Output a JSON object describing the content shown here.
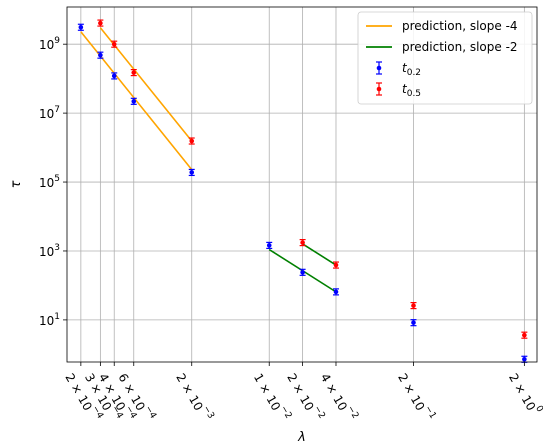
{
  "chart_data": {
    "type": "scatter",
    "xscale": "log",
    "yscale": "log",
    "xlabel": "λ",
    "ylabel": "τ",
    "grid": true,
    "legend_position": "top-right",
    "xlim": [
      0.00015,
      2.6
    ],
    "ylim": [
      0.6,
      12000000000
    ],
    "x_ticks": [
      {
        "value": 0.0002,
        "mantissa": "2",
        "exp": "−4"
      },
      {
        "value": 0.0003,
        "mantissa": "3",
        "exp": "−4"
      },
      {
        "value": 0.0004,
        "mantissa": "4",
        "exp": "−4"
      },
      {
        "value": 0.0006,
        "mantissa": "6",
        "exp": "−4"
      },
      {
        "value": 0.002,
        "mantissa": "2",
        "exp": "−3"
      },
      {
        "value": 0.01,
        "mantissa": "1",
        "exp": "−2"
      },
      {
        "value": 0.02,
        "mantissa": "2",
        "exp": "−2"
      },
      {
        "value": 0.04,
        "mantissa": "4",
        "exp": "−2"
      },
      {
        "value": 0.2,
        "mantissa": "2",
        "exp": "−1"
      },
      {
        "value": 2,
        "mantissa": "2",
        "exp": "0"
      }
    ],
    "y_ticks": [
      {
        "value": 10,
        "exp": "1"
      },
      {
        "value": 1000,
        "exp": "3"
      },
      {
        "value": 100000,
        "exp": "5"
      },
      {
        "value": 10000000,
        "exp": "7"
      },
      {
        "value": 1000000000,
        "exp": "9"
      }
    ],
    "series": [
      {
        "name": "t0.2",
        "name_base": "t",
        "name_sub": "0.2",
        "color": "#0000ff",
        "kind": "errorbar",
        "points": [
          {
            "x": 0.0002,
            "y": 3100000000
          },
          {
            "x": 0.0003,
            "y": 480000000
          },
          {
            "x": 0.0004,
            "y": 120000000
          },
          {
            "x": 0.0006,
            "y": 22000000
          },
          {
            "x": 0.002,
            "y": 190000
          },
          {
            "x": 0.01,
            "y": 1450
          },
          {
            "x": 0.02,
            "y": 240
          },
          {
            "x": 0.04,
            "y": 65
          },
          {
            "x": 0.2,
            "y": 8.3
          },
          {
            "x": 2,
            "y": 0.72
          }
        ]
      },
      {
        "name": "t0.5",
        "name_base": "t",
        "name_sub": "0.5",
        "color": "#ff0000",
        "kind": "errorbar",
        "points": [
          {
            "x": 0.0003,
            "y": 4100000000
          },
          {
            "x": 0.0004,
            "y": 1000000000
          },
          {
            "x": 0.0006,
            "y": 150000000
          },
          {
            "x": 0.002,
            "y": 1550000
          },
          {
            "x": 0.02,
            "y": 1750
          },
          {
            "x": 0.04,
            "y": 390
          },
          {
            "x": 0.2,
            "y": 26
          },
          {
            "x": 2,
            "y": 3.6
          }
        ]
      },
      {
        "name": "prediction, slope -4",
        "color": "#ffa500",
        "kind": "line",
        "segments": [
          [
            {
              "x": 0.0002,
              "y": 2300000000
            },
            {
              "x": 0.002,
              "y": 230000
            }
          ],
          [
            {
              "x": 0.0003,
              "y": 3000000000
            },
            {
              "x": 0.002,
              "y": 1550000
            }
          ]
        ]
      },
      {
        "name": "prediction, slope -2",
        "color": "#008000",
        "kind": "line",
        "segments": [
          [
            {
              "x": 0.01,
              "y": 1100
            },
            {
              "x": 0.04,
              "y": 65
            }
          ],
          [
            {
              "x": 0.02,
              "y": 1600
            },
            {
              "x": 0.04,
              "y": 390
            }
          ]
        ]
      }
    ],
    "legend": [
      {
        "label": "prediction, slope -4",
        "color": "#ffa500",
        "marker": "line"
      },
      {
        "label": "prediction, slope -2",
        "color": "#008000",
        "marker": "line"
      },
      {
        "label_base": "t",
        "label_sub": "0.2",
        "color": "#0000ff",
        "marker": "errorbar"
      },
      {
        "label_base": "t",
        "label_sub": "0.5",
        "color": "#ff0000",
        "marker": "errorbar"
      }
    ]
  }
}
